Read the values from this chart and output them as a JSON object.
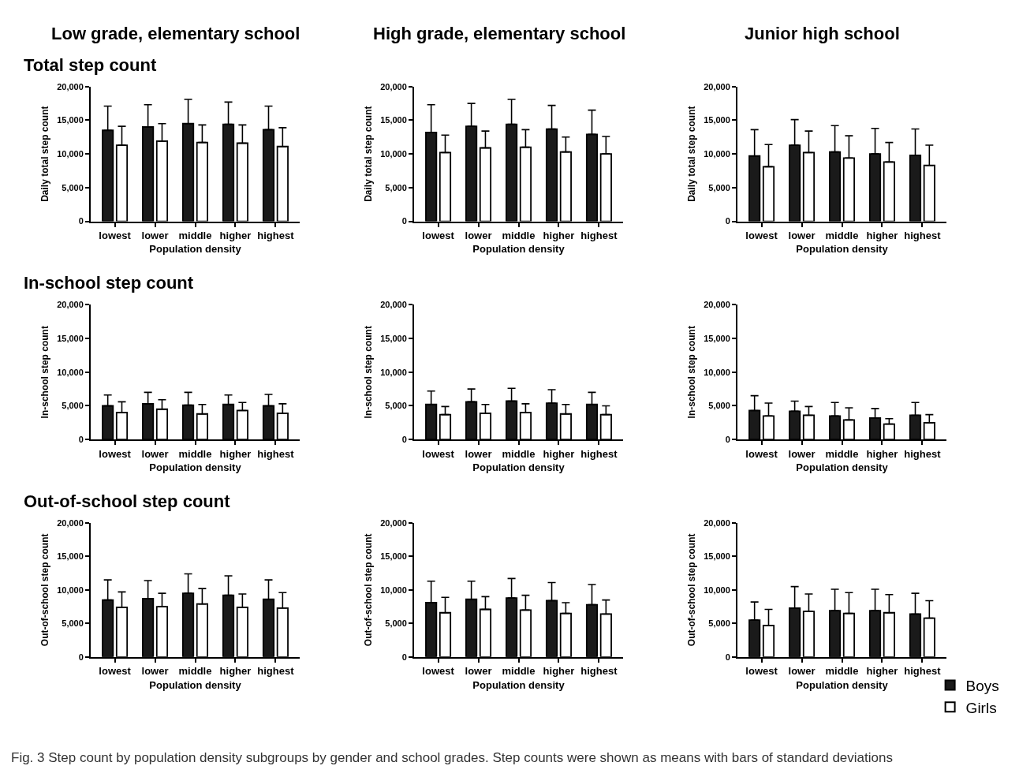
{
  "chart_data": [
    {
      "type": "bar",
      "title": "Low grade, elementary school",
      "subtitle": "Total step count",
      "xlabel": "Population density",
      "ylabel": "Daily total step count",
      "categories": [
        "lowest",
        "lower",
        "middle",
        "higher",
        "highest"
      ],
      "ylim": [
        0,
        20000
      ],
      "yticks": [
        0,
        {
          "value": 5000,
          "label": "5,000"
        },
        {
          "value": 10000,
          "label": "10,000"
        },
        {
          "value": 15000,
          "label": "15,000"
        },
        {
          "value": 20000,
          "label": "20,000"
        }
      ],
      "legend": false,
      "series": [
        {
          "color": "#1a1a1a",
          "values": [
            13500,
            14000,
            14500,
            14400,
            13600
          ],
          "errors": [
            [
              13500,
              17100
            ],
            [
              14000,
              17300
            ],
            [
              14500,
              18100
            ],
            [
              14400,
              17700
            ],
            [
              13600,
              17100
            ]
          ]
        },
        {
          "color": "#ffffff",
          "values": [
            11300,
            11900,
            11700,
            11600,
            11100
          ],
          "errors": [
            [
              11300,
              14100
            ],
            [
              11900,
              14500
            ],
            [
              11700,
              14300
            ],
            [
              11600,
              14300
            ],
            [
              11100,
              13900
            ]
          ]
        }
      ]
    },
    {
      "type": "bar",
      "title": "High grade, elementary school",
      "xlabel": "Population density",
      "ylabel": "Daily total step count",
      "categories": [
        "lowest",
        "lower",
        "middle",
        "higher",
        "highest"
      ],
      "ylim": [
        0,
        20000
      ],
      "yticks": [
        0,
        {
          "value": 5000,
          "label": "5,000"
        },
        {
          "value": 10000,
          "label": "10,000"
        },
        {
          "value": 15000,
          "label": "15,000"
        },
        {
          "value": 20000,
          "label": "20,000"
        }
      ],
      "legend": false,
      "series": [
        {
          "color": "#1a1a1a",
          "values": [
            13200,
            14100,
            14400,
            13700,
            12900
          ],
          "errors": [
            [
              13200,
              17300
            ],
            [
              14100,
              17500
            ],
            [
              14400,
              18100
            ],
            [
              13700,
              17200
            ],
            [
              12900,
              16500
            ]
          ]
        },
        {
          "color": "#ffffff",
          "values": [
            10200,
            10900,
            11000,
            10300,
            10000
          ],
          "errors": [
            [
              10200,
              12800
            ],
            [
              10900,
              13400
            ],
            [
              11000,
              13600
            ],
            [
              10300,
              12500
            ],
            [
              10000,
              12600
            ]
          ]
        }
      ]
    },
    {
      "type": "bar",
      "title": "Junior high school",
      "xlabel": "Population density",
      "ylabel": "Daily total step count",
      "categories": [
        "lowest",
        "lower",
        "middle",
        "higher",
        "highest"
      ],
      "ylim": [
        0,
        20000
      ],
      "yticks": [
        0,
        {
          "value": 5000,
          "label": "5,000"
        },
        {
          "value": 10000,
          "label": "10,000"
        },
        {
          "value": 15000,
          "label": "15,000"
        },
        {
          "value": 20000,
          "label": "20,000"
        }
      ],
      "legend": false,
      "series": [
        {
          "color": "#1a1a1a",
          "values": [
            9700,
            11300,
            10300,
            10000,
            9800
          ],
          "errors": [
            [
              9700,
              13600
            ],
            [
              11300,
              15100
            ],
            [
              10300,
              14200
            ],
            [
              10000,
              13800
            ],
            [
              9800,
              13700
            ]
          ]
        },
        {
          "color": "#ffffff",
          "values": [
            8100,
            10200,
            9400,
            8800,
            8300
          ],
          "errors": [
            [
              8100,
              11400
            ],
            [
              10200,
              13400
            ],
            [
              9400,
              12700
            ],
            [
              8800,
              11700
            ],
            [
              8300,
              11300
            ]
          ]
        }
      ]
    },
    {
      "type": "bar",
      "subtitle": "In-school step count",
      "xlabel": "Population density",
      "ylabel": "In-school step count",
      "categories": [
        "lowest",
        "lower",
        "middle",
        "higher",
        "highest"
      ],
      "ylim": [
        0,
        20000
      ],
      "yticks": [
        0,
        {
          "value": 5000,
          "label": "5,000"
        },
        {
          "value": 10000,
          "label": "10,000"
        },
        {
          "value": 15000,
          "label": "15,000"
        },
        {
          "value": 20000,
          "label": "20,000"
        }
      ],
      "legend": false,
      "series": [
        {
          "color": "#1a1a1a",
          "values": [
            5000,
            5300,
            5100,
            5200,
            5000
          ],
          "errors": [
            [
              5000,
              6600
            ],
            [
              5300,
              7000
            ],
            [
              5100,
              7000
            ],
            [
              5200,
              6600
            ],
            [
              5000,
              6700
            ]
          ]
        },
        {
          "color": "#ffffff",
          "values": [
            4000,
            4500,
            3800,
            4300,
            3900
          ],
          "errors": [
            [
              4000,
              5600
            ],
            [
              4500,
              5900
            ],
            [
              3800,
              5200
            ],
            [
              4300,
              5500
            ],
            [
              3900,
              5300
            ]
          ]
        }
      ]
    },
    {
      "type": "bar",
      "xlabel": "Population density",
      "ylabel": "In-school step count",
      "categories": [
        "lowest",
        "lower",
        "middle",
        "higher",
        "highest"
      ],
      "ylim": [
        0,
        20000
      ],
      "yticks": [
        0,
        {
          "value": 5000,
          "label": "5,000"
        },
        {
          "value": 10000,
          "label": "10,000"
        },
        {
          "value": 15000,
          "label": "15,000"
        },
        {
          "value": 20000,
          "label": "20,000"
        }
      ],
      "legend": false,
      "series": [
        {
          "color": "#1a1a1a",
          "values": [
            5200,
            5600,
            5700,
            5400,
            5200
          ],
          "errors": [
            [
              5200,
              7200
            ],
            [
              5600,
              7500
            ],
            [
              5700,
              7600
            ],
            [
              5400,
              7400
            ],
            [
              5200,
              7000
            ]
          ]
        },
        {
          "color": "#ffffff",
          "values": [
            3700,
            3900,
            4000,
            3800,
            3700
          ],
          "errors": [
            [
              3700,
              4900
            ],
            [
              3900,
              5200
            ],
            [
              4000,
              5300
            ],
            [
              3800,
              5200
            ],
            [
              3700,
              5000
            ]
          ]
        }
      ]
    },
    {
      "type": "bar",
      "xlabel": "Population density",
      "ylabel": "In-school step count",
      "categories": [
        "lowest",
        "lower",
        "middle",
        "higher",
        "highest"
      ],
      "ylim": [
        0,
        20000
      ],
      "yticks": [
        0,
        {
          "value": 5000,
          "label": "5,000"
        },
        {
          "value": 10000,
          "label": "10,000"
        },
        {
          "value": 15000,
          "label": "15,000"
        },
        {
          "value": 20000,
          "label": "20,000"
        }
      ],
      "legend": false,
      "series": [
        {
          "color": "#1a1a1a",
          "values": [
            4300,
            4200,
            3500,
            3200,
            3600
          ],
          "errors": [
            [
              4300,
              6500
            ],
            [
              4200,
              5700
            ],
            [
              3500,
              5500
            ],
            [
              3200,
              4600
            ],
            [
              3600,
              5500
            ]
          ]
        },
        {
          "color": "#ffffff",
          "values": [
            3500,
            3600,
            2900,
            2300,
            2500
          ],
          "errors": [
            [
              3500,
              5400
            ],
            [
              3600,
              4900
            ],
            [
              2900,
              4700
            ],
            [
              2300,
              3100
            ],
            [
              2500,
              3700
            ]
          ]
        }
      ]
    },
    {
      "type": "bar",
      "subtitle": "Out-of-school step count",
      "xlabel": "Population density",
      "ylabel": "Out-of-school step count",
      "categories": [
        "lowest",
        "lower",
        "middle",
        "higher",
        "highest"
      ],
      "ylim": [
        0,
        20000
      ],
      "yticks": [
        0,
        {
          "value": 5000,
          "label": "5,000"
        },
        {
          "value": 10000,
          "label": "10,000"
        },
        {
          "value": 15000,
          "label": "15,000"
        },
        {
          "value": 20000,
          "label": "20,000"
        }
      ],
      "legend": false,
      "series": [
        {
          "color": "#1a1a1a",
          "values": [
            8500,
            8700,
            9500,
            9200,
            8600
          ],
          "errors": [
            [
              8500,
              11500
            ],
            [
              8700,
              11400
            ],
            [
              9500,
              12400
            ],
            [
              9200,
              12100
            ],
            [
              8600,
              11500
            ]
          ]
        },
        {
          "color": "#ffffff",
          "values": [
            7400,
            7500,
            7900,
            7400,
            7300
          ],
          "errors": [
            [
              7400,
              9700
            ],
            [
              7500,
              9500
            ],
            [
              7900,
              10200
            ],
            [
              7400,
              9400
            ],
            [
              7300,
              9600
            ]
          ]
        }
      ]
    },
    {
      "type": "bar",
      "xlabel": "Population density",
      "ylabel": "Out-of-school step count",
      "categories": [
        "lowest",
        "lower",
        "middle",
        "higher",
        "highest"
      ],
      "ylim": [
        0,
        20000
      ],
      "yticks": [
        0,
        {
          "value": 5000,
          "label": "5,000"
        },
        {
          "value": 10000,
          "label": "10,000"
        },
        {
          "value": 15000,
          "label": "15,000"
        },
        {
          "value": 20000,
          "label": "20,000"
        }
      ],
      "legend": false,
      "series": [
        {
          "color": "#1a1a1a",
          "values": [
            8100,
            8600,
            8800,
            8400,
            7800
          ],
          "errors": [
            [
              8100,
              11300
            ],
            [
              8600,
              11300
            ],
            [
              8800,
              11700
            ],
            [
              8400,
              11100
            ],
            [
              7800,
              10800
            ]
          ]
        },
        {
          "color": "#ffffff",
          "values": [
            6600,
            7100,
            7000,
            6500,
            6400
          ],
          "errors": [
            [
              6600,
              8900
            ],
            [
              7100,
              9000
            ],
            [
              7000,
              9200
            ],
            [
              6500,
              8100
            ],
            [
              6400,
              8500
            ]
          ]
        }
      ]
    },
    {
      "type": "bar",
      "xlabel": "Population density",
      "ylabel": "Out-of-school step count",
      "categories": [
        "lowest",
        "lower",
        "middle",
        "higher",
        "highest"
      ],
      "ylim": [
        0,
        20000
      ],
      "yticks": [
        0,
        {
          "value": 5000,
          "label": "5,000"
        },
        {
          "value": 10000,
          "label": "10,000"
        },
        {
          "value": 15000,
          "label": "15,000"
        },
        {
          "value": 20000,
          "label": "20,000"
        }
      ],
      "legend": "bottom right",
      "annotations": [
        "Fig. 3 Step count by population density subgroups by gender and school grades. Step counts were shown as means with bars of standard deviations"
      ],
      "series": [
        {
          "name": "Boys",
          "color": "#1a1a1a",
          "values": [
            5500,
            7300,
            6900,
            6900,
            6400
          ],
          "errors": [
            [
              5500,
              8200
            ],
            [
              7300,
              10500
            ],
            [
              6900,
              10100
            ],
            [
              6900,
              10100
            ],
            [
              6400,
              9500
            ]
          ]
        },
        {
          "name": "Girls",
          "color": "#ffffff",
          "values": [
            4700,
            6800,
            6500,
            6600,
            5800
          ],
          "errors": [
            [
              4700,
              7100
            ],
            [
              6800,
              9400
            ],
            [
              6500,
              9600
            ],
            [
              6600,
              9300
            ],
            [
              5800,
              8400
            ]
          ]
        }
      ]
    }
  ]
}
